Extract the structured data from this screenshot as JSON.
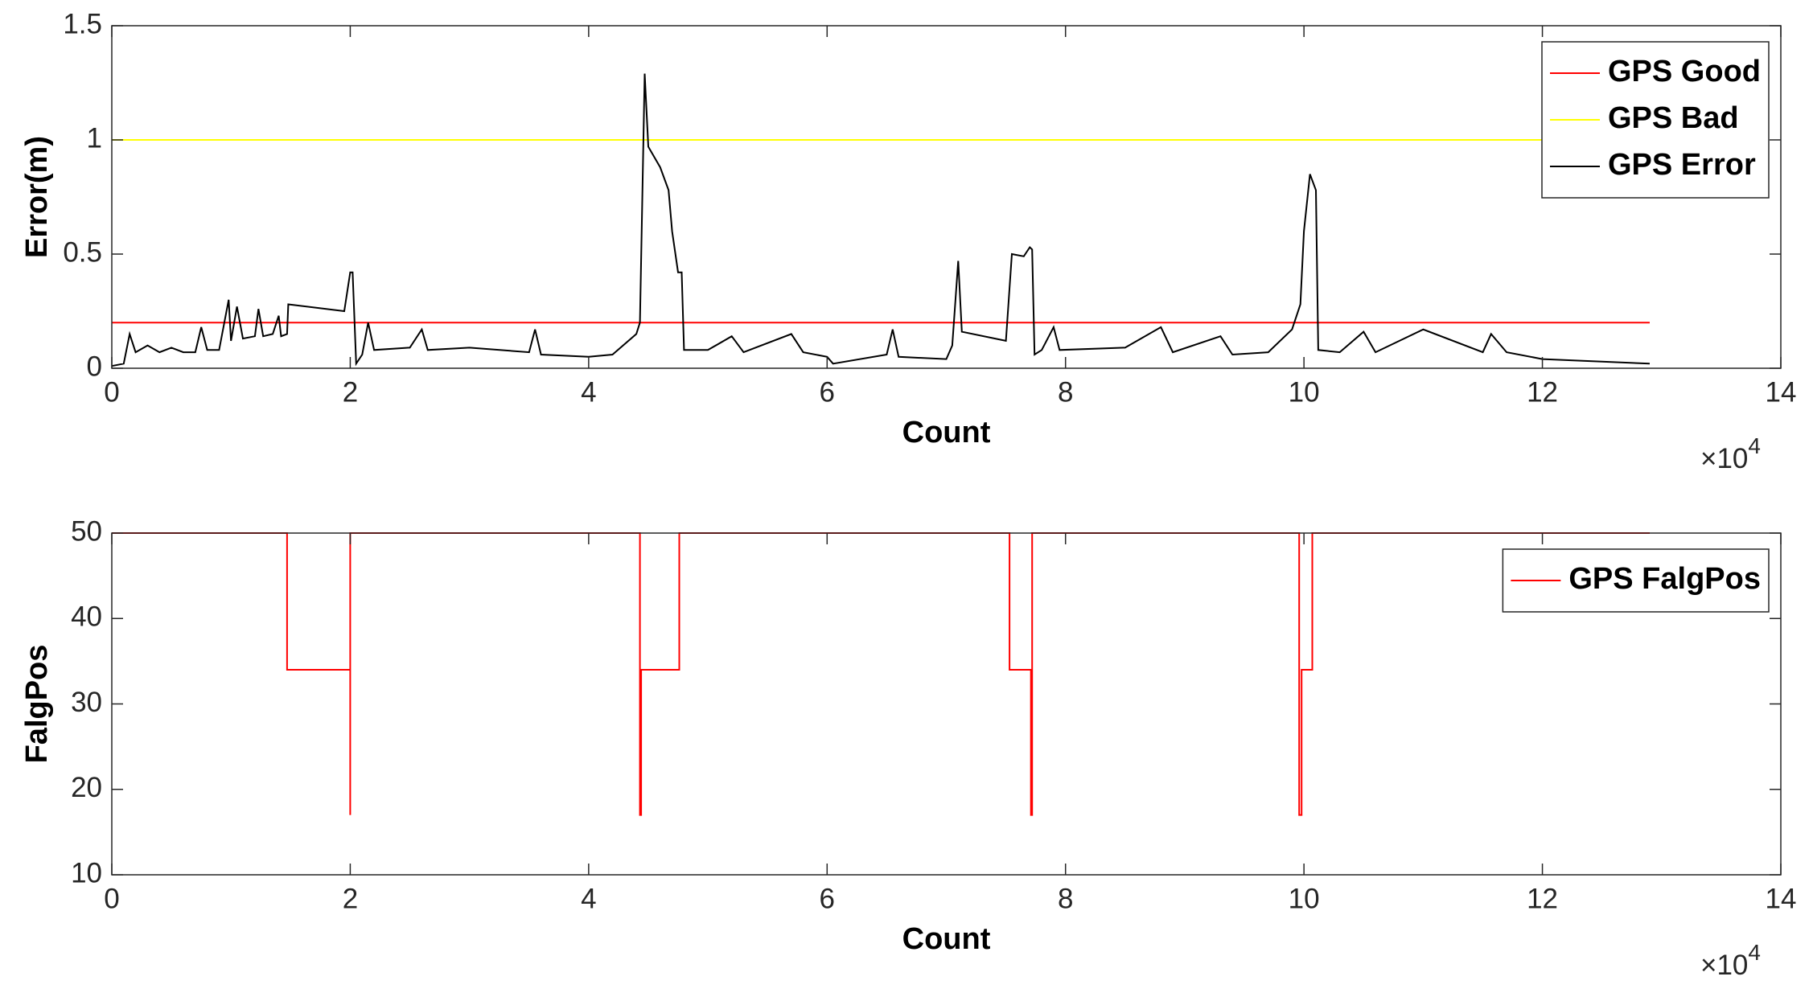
{
  "chart_data": [
    {
      "type": "line",
      "xlabel": "Count",
      "ylabel": "Error(m)",
      "xlim": [
        0,
        14
      ],
      "xticks": [
        0,
        2,
        4,
        6,
        8,
        10,
        12,
        14
      ],
      "x_multiplier": {
        "base": "×10",
        "exponent": "4"
      },
      "ylim": [
        0,
        1.5
      ],
      "yticks": [
        0,
        0.5,
        1,
        1.5
      ],
      "grid": false,
      "legend": "northeast",
      "series": [
        {
          "name": "GPS Good",
          "color": "#ff0000",
          "x": [
            0,
            12.9
          ],
          "values": [
            0.2,
            0.2
          ]
        },
        {
          "name": "GPS Bad",
          "color": "#ffff00",
          "x": [
            0,
            12.9
          ],
          "values": [
            1,
            1
          ]
        },
        {
          "name": "GPS Error",
          "color": "#000000",
          "x": [
            0,
            0.1,
            0.15,
            0.2,
            0.3,
            0.4,
            0.5,
            0.6,
            0.7,
            0.75,
            0.8,
            0.9,
            0.98,
            1.0,
            1.05,
            1.1,
            1.2,
            1.23,
            1.27,
            1.35,
            1.4,
            1.42,
            1.47,
            1.48,
            1.95,
            2.0,
            2.02,
            2.05,
            2.1,
            2.15,
            2.2,
            2.5,
            2.6,
            2.65,
            3.0,
            3.5,
            3.55,
            3.6,
            4.0,
            4.2,
            4.4,
            4.43,
            4.47,
            4.5,
            4.6,
            4.67,
            4.7,
            4.75,
            4.78,
            4.8,
            5.0,
            5.2,
            5.3,
            5.7,
            5.8,
            6.0,
            6.05,
            6.5,
            6.55,
            6.6,
            7.0,
            7.05,
            7.1,
            7.13,
            7.5,
            7.55,
            7.65,
            7.7,
            7.72,
            7.74,
            7.8,
            7.9,
            7.95,
            8.5,
            8.8,
            8.9,
            9.3,
            9.4,
            9.7,
            9.9,
            9.97,
            10.0,
            10.05,
            10.1,
            10.12,
            10.3,
            10.5,
            10.6,
            11.0,
            11.5,
            11.57,
            11.7,
            12.0,
            12.9
          ],
          "values": [
            0.01,
            0.02,
            0.15,
            0.07,
            0.1,
            0.07,
            0.09,
            0.07,
            0.07,
            0.18,
            0.08,
            0.08,
            0.3,
            0.12,
            0.27,
            0.13,
            0.14,
            0.26,
            0.14,
            0.15,
            0.23,
            0.14,
            0.15,
            0.28,
            0.25,
            0.42,
            0.42,
            0.02,
            0.06,
            0.2,
            0.08,
            0.09,
            0.17,
            0.08,
            0.09,
            0.07,
            0.17,
            0.06,
            0.05,
            0.06,
            0.15,
            0.2,
            1.29,
            0.97,
            0.88,
            0.78,
            0.6,
            0.42,
            0.42,
            0.08,
            0.08,
            0.14,
            0.07,
            0.15,
            0.07,
            0.05,
            0.02,
            0.06,
            0.17,
            0.05,
            0.04,
            0.1,
            0.47,
            0.16,
            0.12,
            0.5,
            0.49,
            0.53,
            0.52,
            0.06,
            0.08,
            0.18,
            0.08,
            0.09,
            0.18,
            0.07,
            0.14,
            0.06,
            0.07,
            0.17,
            0.28,
            0.6,
            0.85,
            0.78,
            0.08,
            0.07,
            0.16,
            0.07,
            0.17,
            0.07,
            0.15,
            0.07,
            0.04,
            0.02
          ]
        }
      ]
    },
    {
      "type": "line",
      "xlabel": "Count",
      "ylabel": "FalgPos",
      "xlim": [
        0,
        14
      ],
      "xticks": [
        0,
        2,
        4,
        6,
        8,
        10,
        12,
        14
      ],
      "x_multiplier": {
        "base": "×10",
        "exponent": "4"
      },
      "ylim": [
        10,
        50
      ],
      "yticks": [
        10,
        20,
        30,
        40,
        50
      ],
      "grid": false,
      "legend": "northeast",
      "series": [
        {
          "name": "GPS FalgPos",
          "color": "#ff0000",
          "x": [
            0,
            1.47,
            1.47,
            2.0,
            2.0,
            2.0,
            4.43,
            4.43,
            4.44,
            4.44,
            4.76,
            4.76,
            7.53,
            7.53,
            7.71,
            7.71,
            7.72,
            7.72,
            9.96,
            9.96,
            9.98,
            9.98,
            10.07,
            10.07,
            12.9
          ],
          "values": [
            50,
            50,
            34,
            34,
            17,
            50,
            50,
            17,
            17,
            34,
            34,
            50,
            50,
            34,
            34,
            17,
            17,
            50,
            50,
            17,
            17,
            34,
            34,
            50,
            50
          ]
        }
      ]
    }
  ]
}
